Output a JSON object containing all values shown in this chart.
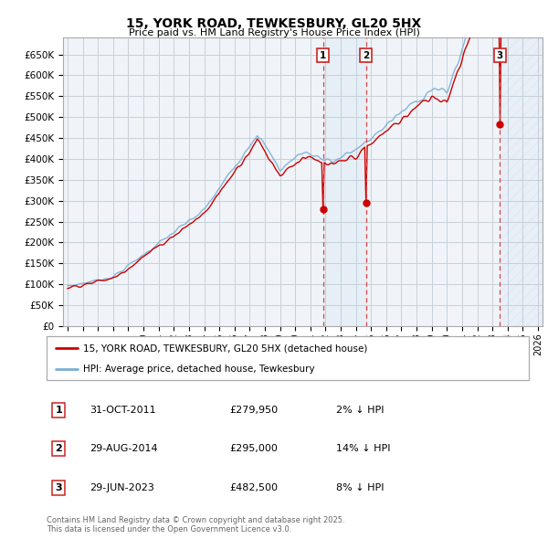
{
  "title": "15, YORK ROAD, TEWKESBURY, GL20 5HX",
  "subtitle": "Price paid vs. HM Land Registry's House Price Index (HPI)",
  "ylim": [
    0,
    700000
  ],
  "yticks": [
    0,
    50000,
    100000,
    150000,
    200000,
    250000,
    300000,
    350000,
    400000,
    450000,
    500000,
    550000,
    600000,
    650000
  ],
  "ytick_labels": [
    "£0",
    "£50K",
    "£100K",
    "£150K",
    "£200K",
    "£250K",
    "£300K",
    "£350K",
    "£400K",
    "£450K",
    "£500K",
    "£550K",
    "£600K",
    "£650K"
  ],
  "xlim_start": 1994.7,
  "xlim_end": 2026.3,
  "sale_events": [
    {
      "num": 1,
      "year": 2011.83,
      "price": 279950,
      "date": "31-OCT-2011",
      "pct": "2%",
      "dir": "↓"
    },
    {
      "num": 2,
      "year": 2014.66,
      "price": 295000,
      "date": "29-AUG-2014",
      "pct": "14%",
      "dir": "↓"
    },
    {
      "num": 3,
      "year": 2023.49,
      "price": 482500,
      "date": "29-JUN-2023",
      "pct": "8%",
      "dir": "↓"
    }
  ],
  "legend_line1": "15, YORK ROAD, TEWKESBURY, GL20 5HX (detached house)",
  "legend_line2": "HPI: Average price, detached house, Tewkesbury",
  "footer1": "Contains HM Land Registry data © Crown copyright and database right 2025.",
  "footer2": "This data is licensed under the Open Government Licence v3.0.",
  "line_color_red": "#cc0000",
  "line_color_blue": "#7aaed6",
  "background_color": "#f0f4f8",
  "grid_color": "#c8d0d8"
}
